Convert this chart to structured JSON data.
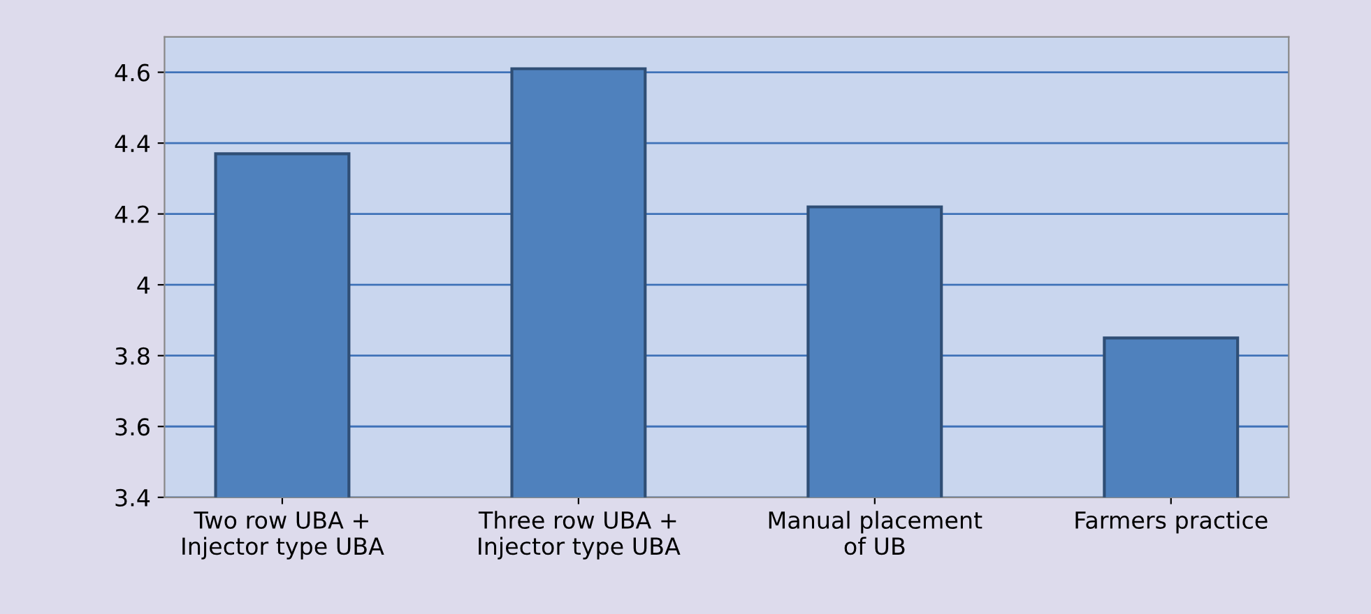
{
  "chart_data": {
    "type": "bar",
    "categories": [
      "Two row UBA +\nInjector type UBA",
      "Three row UBA +\nInjector type UBA",
      "Manual placement\nof UB",
      "Farmers practice"
    ],
    "values": [
      4.37,
      4.61,
      4.22,
      3.85
    ],
    "color": "#4f81bd",
    "ylim": [
      3.4,
      4.7
    ],
    "yticks": [
      3.4,
      3.6,
      3.8,
      {
        "value": 4,
        "label": "4"
      },
      4.2,
      4.4,
      4.6
    ],
    "grid": "y"
  }
}
